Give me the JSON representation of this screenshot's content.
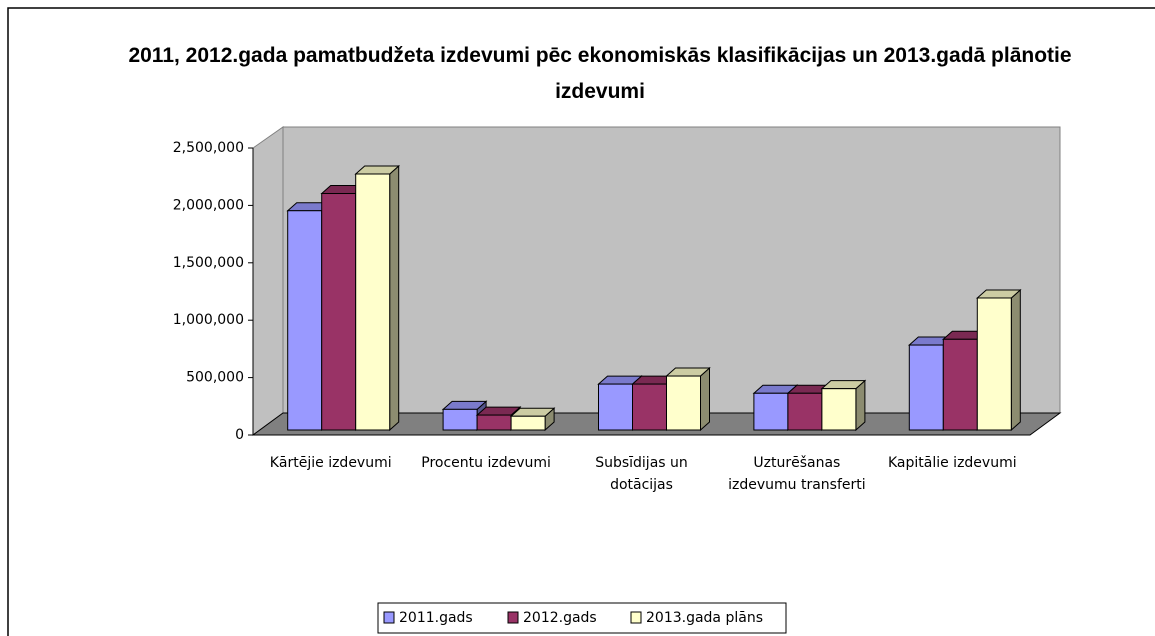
{
  "chart_data": {
    "type": "bar3d",
    "title": "2011, 2012.gada pamatbudžeta izdevumi pēc ekonomiskās klasifikācijas un 2013.gadā plānotie izdevumi",
    "categories": [
      "Kārtējie izdevumi",
      "Procentu izdevumi",
      "Subsīdijas un dotācijas",
      "Uzturēšanas izdevumu transferti",
      "Kapitālie izdevumi"
    ],
    "series": [
      {
        "name": "2011.gads",
        "color": "#9999ff",
        "values": [
          1910000,
          180000,
          400000,
          320000,
          740000
        ]
      },
      {
        "name": "2012.gads",
        "color": "#993366",
        "values": [
          2060000,
          130000,
          400000,
          320000,
          790000
        ]
      },
      {
        "name": "2013.gada plāns",
        "color": "#ffffcc",
        "values": [
          2230000,
          120000,
          470000,
          360000,
          1150000
        ]
      }
    ],
    "ylim": [
      0,
      2500000
    ],
    "yticks": [
      0,
      {
        "value": 500000,
        "label": "500,000"
      },
      {
        "value": 1000000,
        "label": "1,000,000"
      },
      {
        "value": 1500000,
        "label": "1,500,000"
      },
      {
        "value": 2000000,
        "label": "2,000,000"
      },
      {
        "value": 2500000,
        "label": "2,500,000"
      }
    ],
    "legend": "bottom"
  }
}
